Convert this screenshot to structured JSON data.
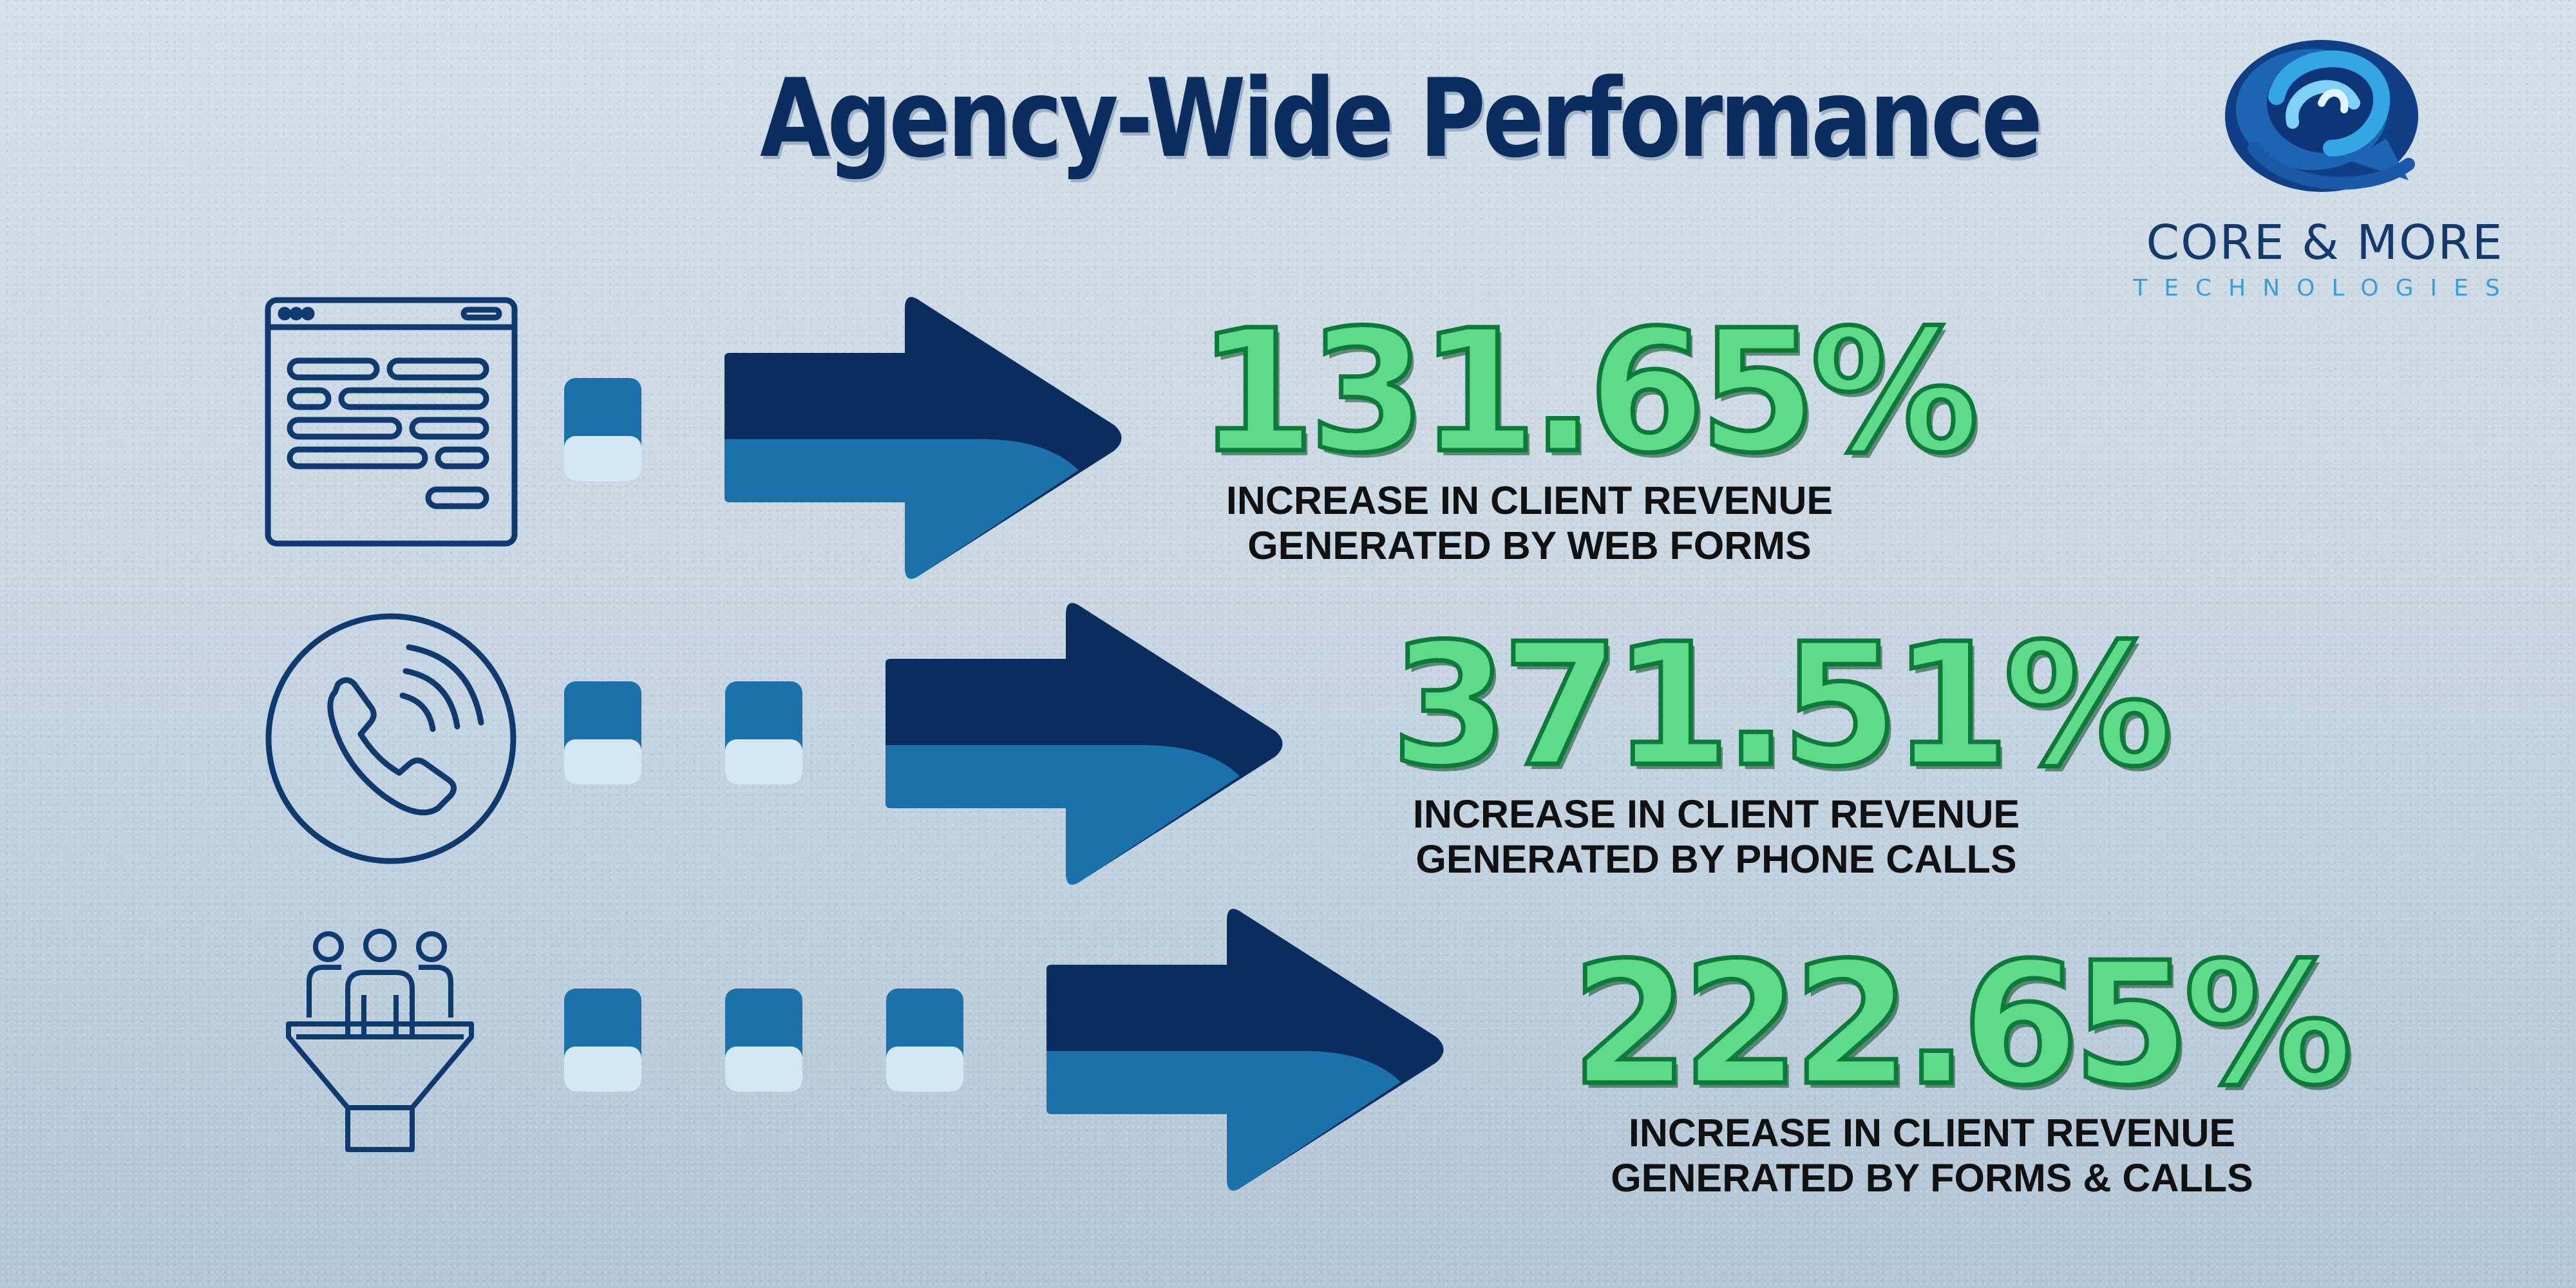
{
  "title": "Agency-Wide Performance",
  "logo": {
    "name": "CORE & MORE",
    "tagline": "TECHNOLOGIES"
  },
  "colors": {
    "navy": "#0b2c5f",
    "blue": "#1b72aa",
    "pale_blue": "#d3e7f5",
    "green": "#5fd98a",
    "green_outline": "#0e7a3a",
    "logo_cyan": "#3a9fd8"
  },
  "rows": [
    {
      "icon": "web-form-icon",
      "steps": 1,
      "value": "131.65%",
      "label_line1": "INCREASE IN CLIENT REVENUE",
      "label_line2": "GENERATED BY WEB FORMS"
    },
    {
      "icon": "phone-call-icon",
      "steps": 2,
      "value": "371.51%",
      "label_line1": "INCREASE IN CLIENT REVENUE",
      "label_line2": "GENERATED BY PHONE CALLS"
    },
    {
      "icon": "people-funnel-icon",
      "steps": 3,
      "value": "222.65%",
      "label_line1": "INCREASE IN CLIENT REVENUE",
      "label_line2": "GENERATED BY FORMS & CALLS"
    }
  ]
}
